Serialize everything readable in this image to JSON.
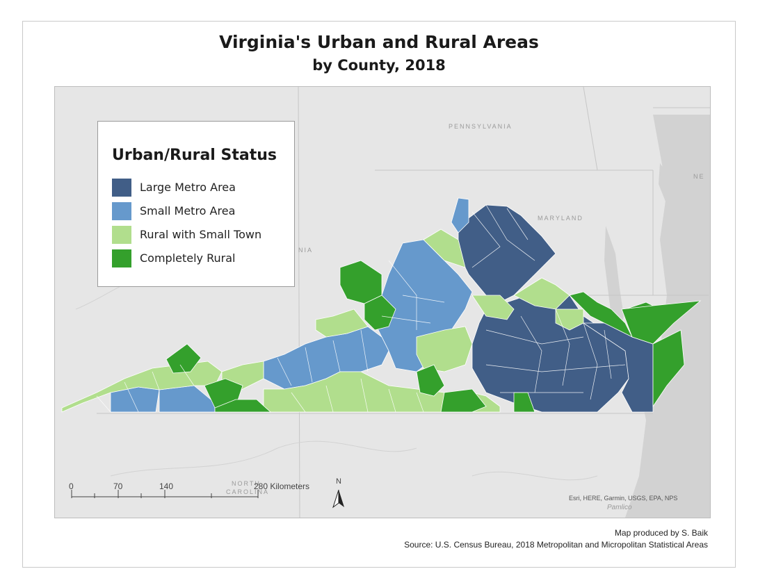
{
  "title": "Virginia's Urban and Rural Areas",
  "subtitle": "by County, 2018",
  "legend": {
    "title": "Urban/Rural Status",
    "items": [
      {
        "label": "Large Metro Area",
        "color": "#415e87"
      },
      {
        "label": "Small Metro Area",
        "color": "#6699cc"
      },
      {
        "label": "Rural with Small Town",
        "color": "#b1de8d"
      },
      {
        "label": "Completely Rural",
        "color": "#34a02c"
      }
    ]
  },
  "geo_labels": {
    "pennsylvania": "PENNSYLVANIA",
    "maryland": "MARYLAND",
    "north_carolina_1": "NORTH",
    "north_carolina_2": "CAROLINA",
    "west_virginia_fragment": "NIA",
    "new_jersey_fragment": "NE",
    "pamlico": "Pamlico"
  },
  "scale_bar": {
    "ticks": [
      "0",
      "70",
      "140",
      "280 Kilometers"
    ]
  },
  "north_arrow_label": "N",
  "basemap_credit": "Esri, HERE, Garmin, USGS, EPA, NPS",
  "footer": {
    "produced_by": "Map produced by S. Baik",
    "source": "Source: U.S. Census Bureau, 2018 Metropolitan and Micropolitan Statistical Areas"
  }
}
